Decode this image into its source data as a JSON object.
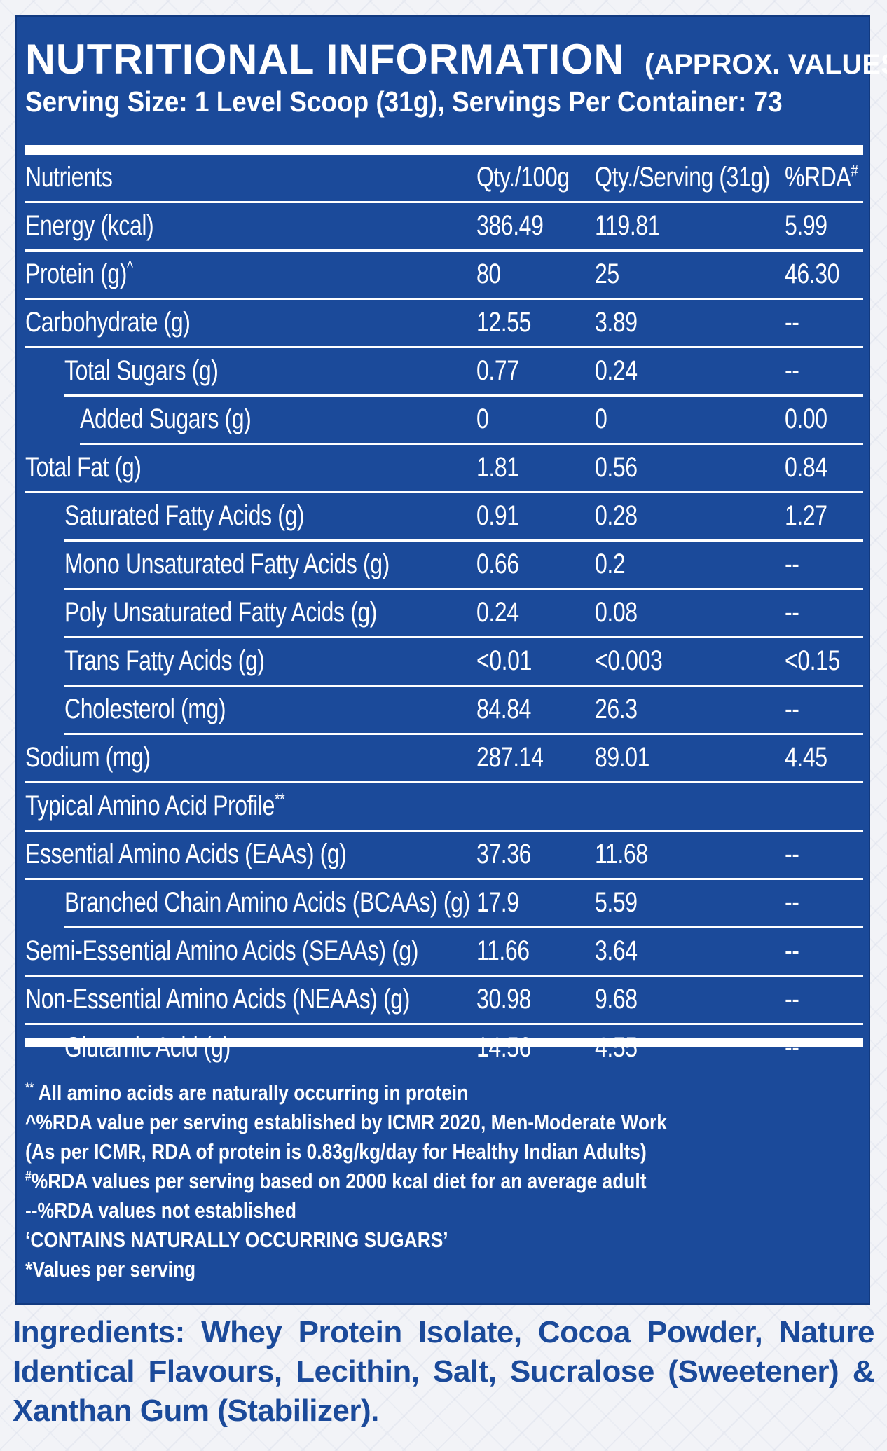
{
  "header": {
    "title": "NUTRITIONAL INFORMATION",
    "subtitle": "(APPROX. VALUES):",
    "serving": "Serving Size: 1 Level Scoop (31g), Servings Per Container: 73"
  },
  "table": {
    "columns": {
      "name": "Nutrients",
      "per100": "Qty./100g",
      "perServing": "Qty./Serving (31g)",
      "rda": "%RDA",
      "rda_mark": "#"
    },
    "rows": [
      {
        "name": "Energy (kcal)",
        "mark": "",
        "per100": "386.49",
        "perServing": "119.81",
        "rda": "5.99",
        "indent": 0
      },
      {
        "name": "Protein (g)",
        "mark": "^",
        "per100": "80",
        "perServing": "25",
        "rda": "46.30",
        "indent": 0
      },
      {
        "name": "Carbohydrate (g)",
        "mark": "",
        "per100": "12.55",
        "perServing": "3.89",
        "rda": "--",
        "indent": 0
      },
      {
        "name": "Total Sugars (g)",
        "mark": "",
        "per100": "0.77",
        "perServing": "0.24",
        "rda": "--",
        "indent": 1
      },
      {
        "name": "Added Sugars (g)",
        "mark": "",
        "per100": "0",
        "perServing": "0",
        "rda": "0.00",
        "indent": 2
      },
      {
        "name": "Total Fat (g)",
        "mark": "",
        "per100": "1.81",
        "perServing": "0.56",
        "rda": "0.84",
        "indent": 0
      },
      {
        "name": "Saturated Fatty Acids (g)",
        "mark": "",
        "per100": "0.91",
        "perServing": "0.28",
        "rda": "1.27",
        "indent": 1
      },
      {
        "name": "Mono Unsaturated Fatty Acids (g)",
        "mark": "",
        "per100": "0.66",
        "perServing": "0.2",
        "rda": "--",
        "indent": 1
      },
      {
        "name": "Poly Unsaturated Fatty Acids (g)",
        "mark": "",
        "per100": "0.24",
        "perServing": "0.08",
        "rda": "--",
        "indent": 1
      },
      {
        "name": "Trans Fatty Acids (g)",
        "mark": "",
        "per100": "<0.01",
        "perServing": "<0.003",
        "rda": "<0.15",
        "indent": 1
      },
      {
        "name": "Cholesterol (mg)",
        "mark": "",
        "per100": "84.84",
        "perServing": "26.3",
        "rda": "--",
        "indent": 1
      },
      {
        "name": "Sodium (mg)",
        "mark": "",
        "per100": "287.14",
        "perServing": "89.01",
        "rda": "4.45",
        "indent": 0
      },
      {
        "name": "Typical Amino Acid Profile",
        "mark": "**",
        "per100": "",
        "perServing": "",
        "rda": "",
        "indent": 0
      },
      {
        "name": "Essential Amino Acids (EAAs) (g)",
        "mark": "",
        "per100": "37.36",
        "perServing": "11.68",
        "rda": "--",
        "indent": 0
      },
      {
        "name": "Branched Chain Amino Acids (BCAAs) (g)",
        "mark": "",
        "per100": "17.9",
        "perServing": "5.59",
        "rda": "--",
        "indent": 1
      },
      {
        "name": "Semi-Essential Amino Acids (SEAAs) (g)",
        "mark": "",
        "per100": "11.66",
        "perServing": "3.64",
        "rda": "--",
        "indent": 0
      },
      {
        "name": "Non-Essential Amino Acids (NEAAs) (g)",
        "mark": "",
        "per100": "30.98",
        "perServing": "9.68",
        "rda": "--",
        "indent": 0
      },
      {
        "name": "Glutamic Acid (g)",
        "mark": "",
        "per100": "14.56",
        "perServing": "4.55",
        "rda": "--",
        "indent": 1
      }
    ]
  },
  "notes": [
    {
      "mark": "**",
      "text": " All amino acids are naturally occurring in protein"
    },
    {
      "mark": "",
      "text": "^%RDA value per serving established by ICMR 2020, Men-Moderate Work"
    },
    {
      "mark": "",
      "text": "(As per ICMR, RDA of protein is 0.83g/kg/day for Healthy Indian Adults)"
    },
    {
      "mark": "#",
      "text": "%RDA values per serving based on 2000 kcal diet for an average adult"
    },
    {
      "mark": "",
      "text": "--%RDA values not established"
    },
    {
      "mark": "",
      "text": "‘CONTAINS NATURALLY OCCURRING SUGARS’"
    },
    {
      "mark": "",
      "text": "*Values per serving"
    }
  ],
  "ingredients": {
    "label": "Ingredients:",
    "text": " Whey Protein Isolate, Cocoa Powder, Nature Identical Flavours, Lecithin, Salt, Sucralose (Sweetener) & Xanthan Gum (Stabilizer)."
  },
  "colors": {
    "panel": "#1b4a9a",
    "text": "#ffffff",
    "ingredients": "#1b4a9a"
  }
}
